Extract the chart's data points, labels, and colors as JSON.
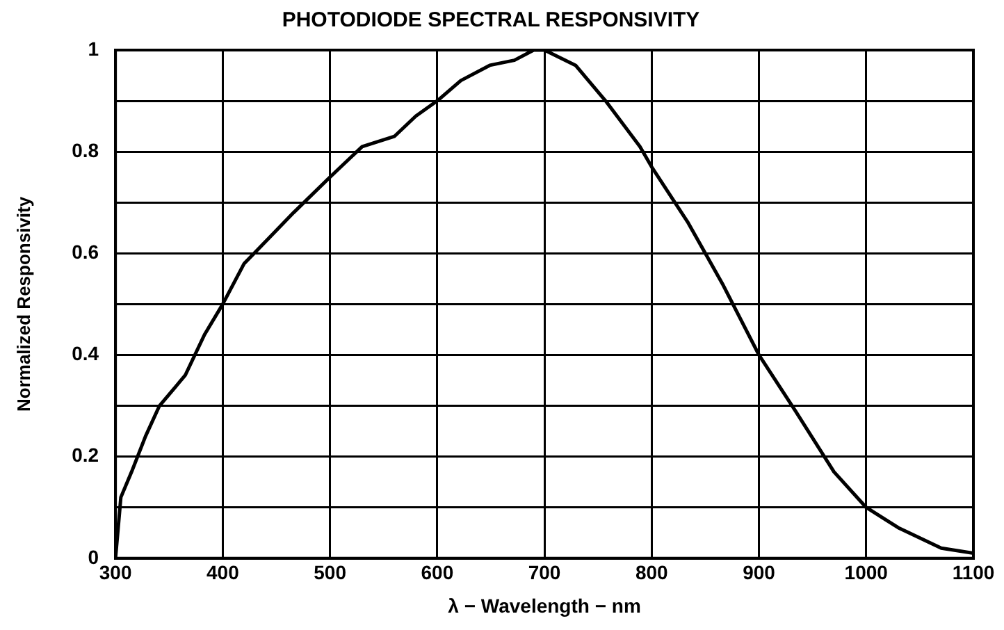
{
  "chart_data": {
    "type": "line",
    "title": "PHOTODIODE SPECTRAL RESPONSIVITY",
    "xlabel": "λ − Wavelength − nm",
    "ylabel": "Normalized Responsivity",
    "x": [
      300,
      305,
      315,
      328,
      341,
      365,
      383,
      400,
      420,
      443,
      466,
      500,
      530,
      560,
      580,
      600,
      622,
      649,
      672,
      690,
      700,
      729,
      757,
      789,
      800,
      834,
      866,
      900,
      934,
      970,
      1000,
      1030,
      1070,
      1100
    ],
    "series": [
      {
        "color": "#000000",
        "values": [
          0,
          0.12,
          0.17,
          0.24,
          0.3,
          0.36,
          0.44,
          0.5,
          0.58,
          0.63,
          0.68,
          0.75,
          0.81,
          0.83,
          0.87,
          0.9,
          0.94,
          0.97,
          0.98,
          1.0,
          1.0,
          0.97,
          0.9,
          0.81,
          0.77,
          0.66,
          0.54,
          0.4,
          0.29,
          0.17,
          0.1,
          0.06,
          0.02,
          0.01
        ]
      }
    ],
    "xlim": [
      300,
      1100
    ],
    "xticks": [
      300,
      400,
      500,
      600,
      700,
      800,
      900,
      1000,
      1100
    ],
    "ylim": [
      0,
      1
    ],
    "yticks": [
      0,
      {
        "value": 0.1,
        "label": null
      },
      0.2,
      {
        "value": 0.3,
        "label": null
      },
      0.4,
      {
        "value": 0.5,
        "label": null
      },
      0.6,
      {
        "value": 0.7,
        "label": null
      },
      0.8,
      {
        "value": 0.9,
        "label": null
      },
      1
    ],
    "grid": true,
    "legend": false,
    "marker": "none",
    "line_style": "solid"
  }
}
